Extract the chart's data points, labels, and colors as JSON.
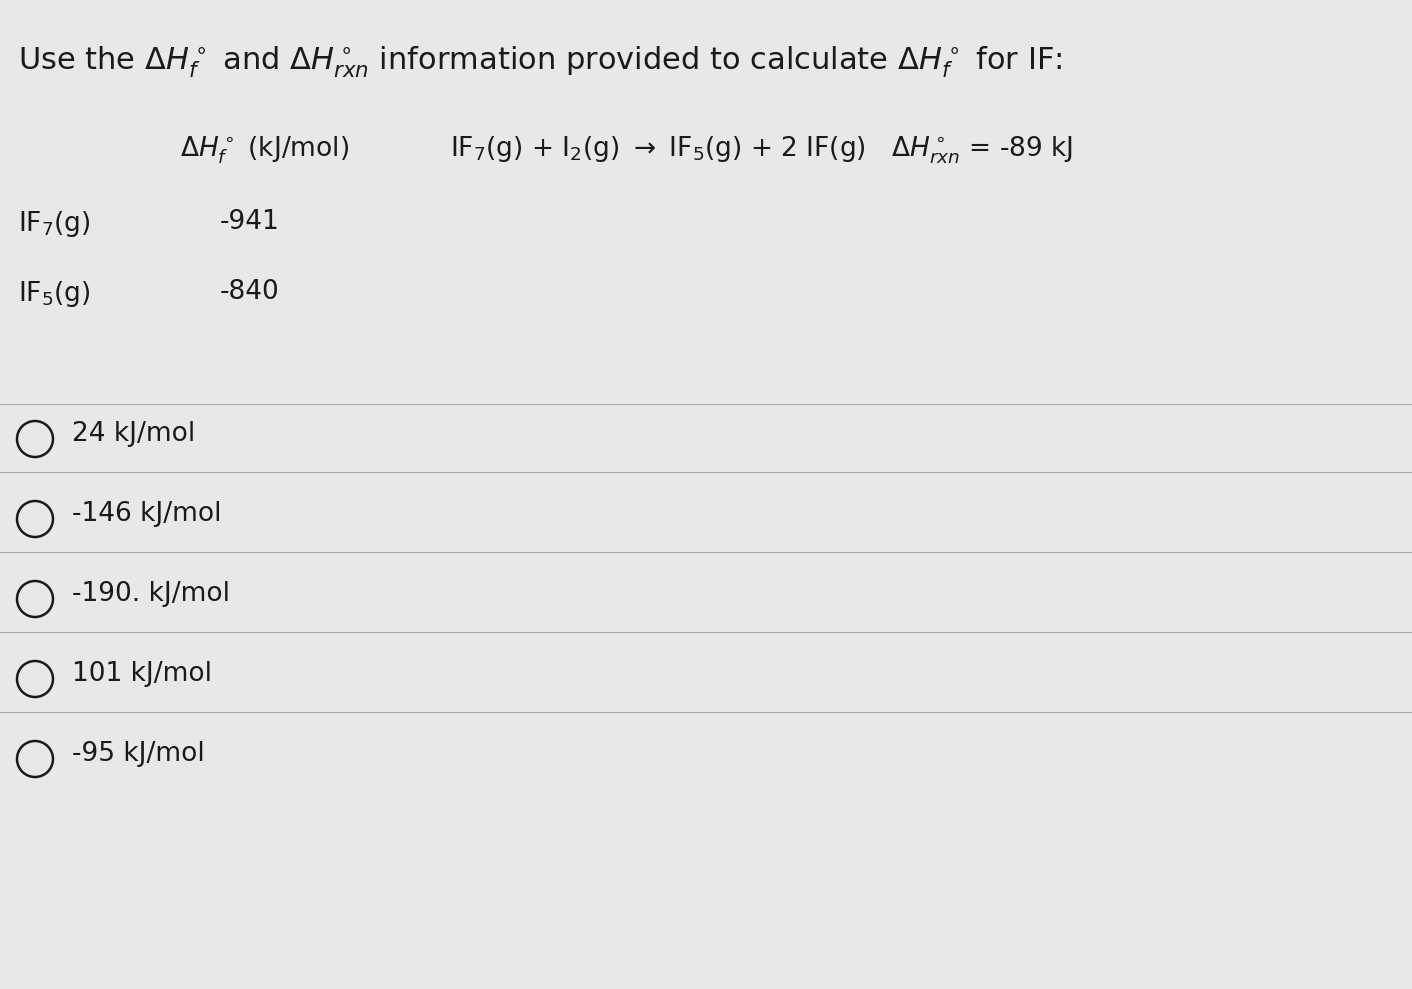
{
  "title": "Use the ΔH°f and ΔH°rxn information provided to calculate ΔH°f for IF:",
  "table_header": "ΔH°f (kJ/mol)",
  "table_rows": [
    {
      "label": "IF₇(g)",
      "value": "-941"
    },
    {
      "label": "IF₅(g)",
      "value": "-840"
    }
  ],
  "reaction": "IF₇(g) + I₂(g) → IF₅(g) + 2 IF(g)   ΔH°rxn = -89 kJ",
  "choices": [
    "24 kJ/mol",
    "-146 kJ/mol",
    "-190. kJ/mol",
    "101 kJ/mol",
    "-95 kJ/mol"
  ],
  "bg_color": "#e8e8e8",
  "text_color": "#1a1a1a",
  "divider_color": "#aaaaaa",
  "font_size_title": 22,
  "font_size_body": 19,
  "font_size_choice": 19
}
